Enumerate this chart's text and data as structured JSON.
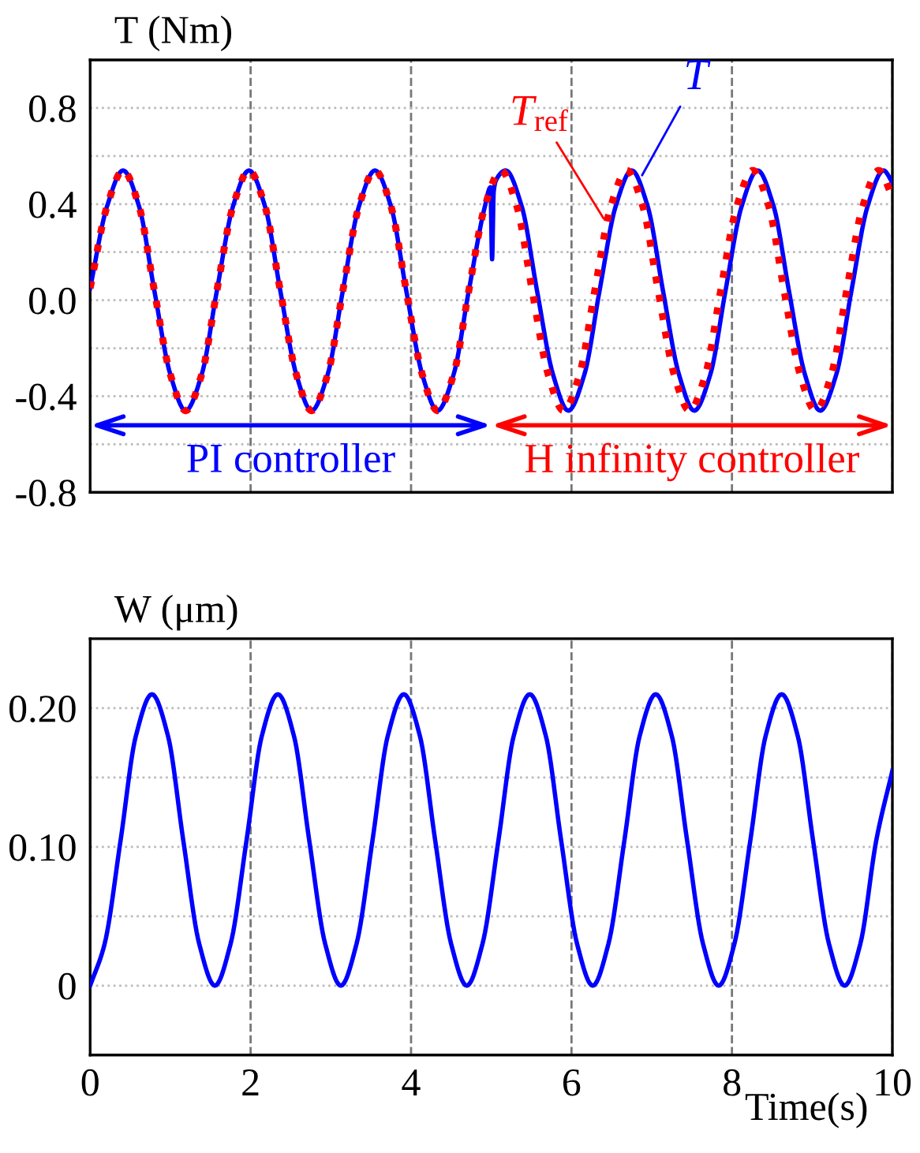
{
  "chart_data": [
    {
      "type": "line",
      "ylabel": "T (Nm)",
      "xlim": [
        0,
        10
      ],
      "ylim": [
        -0.8,
        1.0
      ],
      "xticks": [
        {
          "value": 0,
          "label": null
        },
        {
          "value": 2,
          "label": null
        },
        {
          "value": 4,
          "label": null
        },
        {
          "value": 6,
          "label": null
        },
        {
          "value": 8,
          "label": null
        },
        {
          "value": 10,
          "label": null
        }
      ],
      "yticks": [
        -0.8,
        {
          "value": -0.6,
          "label": null
        },
        -0.4,
        {
          "value": -0.2,
          "label": null
        },
        {
          "value": 0,
          "label": "0.0"
        },
        {
          "value": 0.2,
          "label": null
        },
        0.4,
        {
          "value": 0.6,
          "label": null
        },
        0.8
      ],
      "tick_labels": "y",
      "grid": true,
      "series": [
        {
          "color": "#ff0000",
          "line_style": "dotted",
          "x": [
            0,
            0.21,
            0.41,
            0.61,
            0.8,
            1.0,
            1.19,
            1.39,
            1.58,
            1.78,
            1.98,
            2.18,
            2.37,
            2.57,
            2.76,
            2.96,
            3.15,
            3.35,
            3.55,
            3.75,
            3.94,
            4.14,
            4.33,
            4.53,
            4.72,
            4.92,
            5.12,
            5.32,
            5.51,
            5.71,
            5.9,
            6.1,
            6.29,
            6.49,
            6.69,
            6.89,
            7.08,
            7.28,
            7.47,
            7.67,
            7.86,
            8.06,
            8.26,
            8.46,
            8.65,
            8.85,
            9.04,
            9.24,
            9.43,
            9.63,
            9.83,
            10.0
          ],
          "values": [
            0.05,
            0.39,
            0.54,
            0.39,
            0.04,
            -0.31,
            -0.46,
            -0.31,
            0.04,
            0.39,
            0.54,
            0.39,
            0.04,
            -0.31,
            -0.46,
            -0.31,
            0.04,
            0.39,
            0.54,
            0.39,
            0.04,
            -0.31,
            -0.46,
            -0.31,
            0.04,
            0.39,
            0.54,
            0.39,
            0.04,
            -0.31,
            -0.46,
            -0.31,
            0.04,
            0.39,
            0.54,
            0.39,
            0.04,
            -0.31,
            -0.46,
            -0.31,
            0.04,
            0.39,
            0.54,
            0.39,
            0.04,
            -0.31,
            -0.46,
            -0.31,
            0.04,
            0.39,
            0.54,
            0.43
          ]
        },
        {
          "color": "#0000ff",
          "line_style": "solid",
          "x": [
            0,
            0.21,
            0.41,
            0.61,
            0.8,
            1.0,
            1.19,
            1.39,
            1.58,
            1.78,
            1.98,
            2.18,
            2.37,
            2.57,
            2.76,
            2.96,
            3.15,
            3.35,
            3.55,
            3.75,
            3.94,
            4.14,
            4.33,
            4.53,
            4.72,
            4.92,
            4.99,
            5.01,
            5.03,
            5.06,
            5.18,
            5.38,
            5.57,
            5.77,
            5.96,
            6.16,
            6.35,
            6.55,
            6.75,
            6.95,
            7.14,
            7.34,
            7.53,
            7.73,
            7.92,
            8.12,
            8.32,
            8.52,
            8.71,
            8.91,
            9.1,
            9.3,
            9.49,
            9.69,
            9.89,
            10.0
          ],
          "values": [
            0.05,
            0.39,
            0.54,
            0.39,
            0.04,
            -0.31,
            -0.46,
            -0.31,
            0.04,
            0.39,
            0.54,
            0.39,
            0.04,
            -0.31,
            -0.46,
            -0.31,
            0.04,
            0.39,
            0.54,
            0.39,
            0.04,
            -0.31,
            -0.46,
            -0.31,
            0.04,
            0.39,
            0.47,
            0.17,
            0.45,
            0.5,
            0.54,
            0.39,
            0.04,
            -0.31,
            -0.46,
            -0.31,
            0.04,
            0.39,
            0.54,
            0.39,
            0.04,
            -0.31,
            -0.46,
            -0.31,
            0.04,
            0.39,
            0.54,
            0.39,
            0.04,
            -0.31,
            -0.46,
            -0.31,
            0.04,
            0.39,
            0.54,
            0.49
          ]
        }
      ],
      "annotations": [
        {
          "text": "T$_{ref}$",
          "x": 6.4,
          "y": 0.34
        },
        {
          "text": "T",
          "x": 6.88,
          "y": 0.52
        },
        "PI controller",
        "H infinity controller"
      ]
    },
    {
      "type": "line",
      "ylabel": "W (μm)",
      "xlabel": "Time(s)",
      "xlim": [
        0,
        10
      ],
      "ylim": [
        -0.05,
        0.25
      ],
      "xticks": [
        0,
        2,
        4,
        6,
        8,
        10
      ],
      "yticks": [
        0,
        {
          "value": 0.05,
          "label": null
        },
        {
          "value": 0.1,
          "label": "0.10"
        },
        {
          "value": 0.15,
          "label": null
        },
        {
          "value": 0.2,
          "label": "0.20"
        }
      ],
      "grid": true,
      "series": [
        {
          "color": "#0000ff",
          "line_style": "solid",
          "x": [
            0,
            0.18,
            0.38,
            0.57,
            0.77,
            0.97,
            1.16,
            1.36,
            1.555,
            1.75,
            1.95,
            2.14,
            2.34,
            2.54,
            2.73,
            2.93,
            3.125,
            3.32,
            3.52,
            3.71,
            3.91,
            4.11,
            4.3,
            4.5,
            4.695,
            4.89,
            5.09,
            5.28,
            5.48,
            5.68,
            5.87,
            6.07,
            6.265,
            6.46,
            6.66,
            6.85,
            7.05,
            7.25,
            7.44,
            7.64,
            7.835,
            8.03,
            8.23,
            8.42,
            8.62,
            8.82,
            9.01,
            9.21,
            9.405,
            9.6,
            9.8,
            10.0
          ],
          "values": [
            0,
            0.03,
            0.105,
            0.18,
            0.21,
            0.18,
            0.105,
            0.03,
            0,
            0.03,
            0.105,
            0.18,
            0.21,
            0.18,
            0.105,
            0.03,
            0,
            0.03,
            0.105,
            0.18,
            0.21,
            0.18,
            0.105,
            0.03,
            0,
            0.03,
            0.105,
            0.18,
            0.21,
            0.18,
            0.105,
            0.03,
            0,
            0.03,
            0.105,
            0.18,
            0.21,
            0.18,
            0.105,
            0.03,
            0,
            0.03,
            0.105,
            0.18,
            0.21,
            0.18,
            0.105,
            0.03,
            0,
            0.03,
            0.105,
            0.155
          ]
        }
      ]
    }
  ]
}
